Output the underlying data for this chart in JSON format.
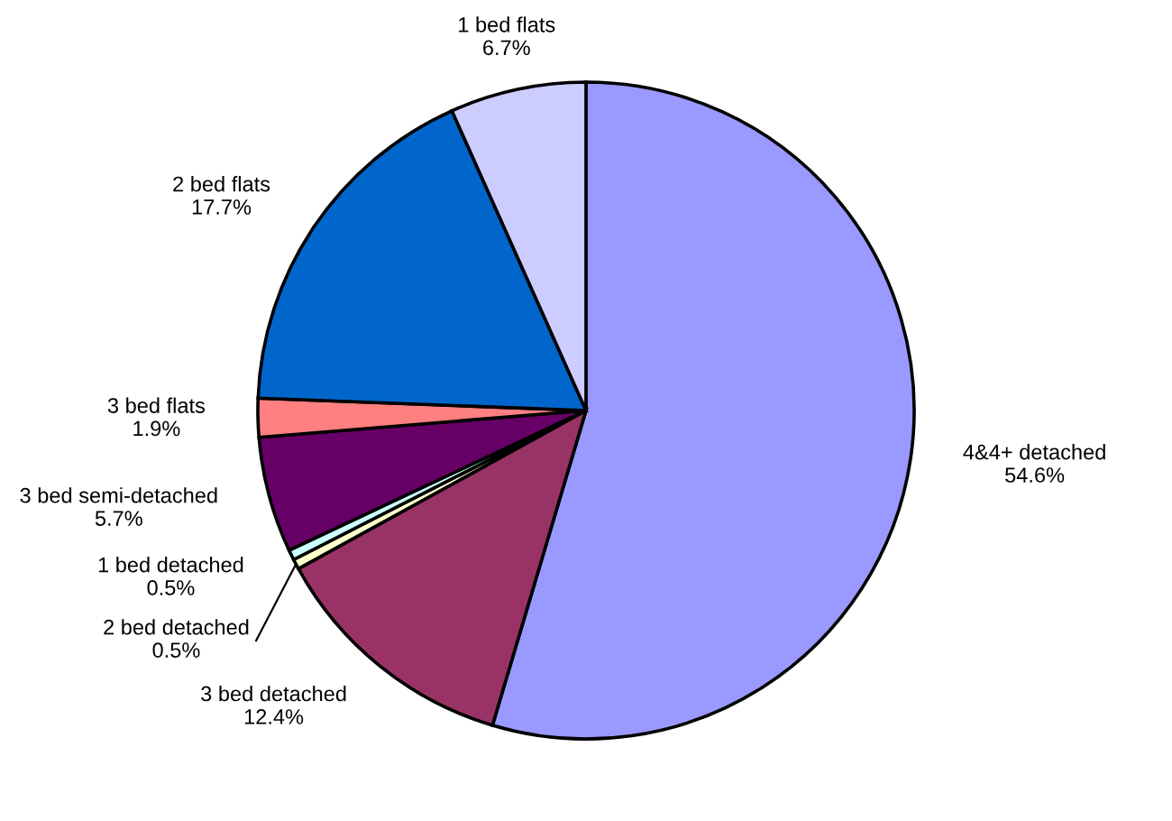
{
  "chart_data": {
    "type": "pie",
    "categories": [
      "4&4+ detached",
      "3 bed detached",
      "2 bed detached",
      "1 bed detached",
      "3 bed semi-detached",
      "3 bed flats",
      "2 bed flats",
      "1 bed flats"
    ],
    "values": [
      54.6,
      12.4,
      0.5,
      0.5,
      5.7,
      1.9,
      17.7,
      6.7
    ],
    "value_labels": [
      "54.6%",
      "12.4%",
      "0.5%",
      "0.5%",
      "5.7%",
      "1.9%",
      "17.7%",
      "6.7%"
    ],
    "colors": [
      "#9999ff",
      "#993366",
      "#ffffcc",
      "#ccffff",
      "#660066",
      "#ff8080",
      "#0066cc",
      "#ccccff"
    ],
    "legend": false
  }
}
